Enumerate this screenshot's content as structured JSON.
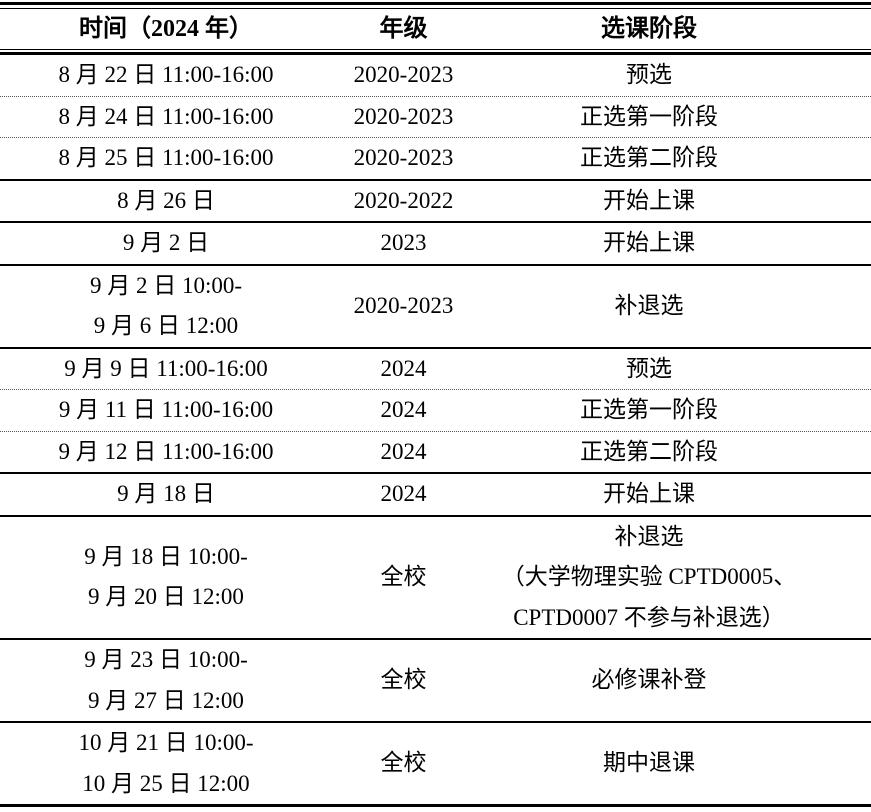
{
  "colors": {
    "text": "#000000",
    "background": "#ffffff",
    "rule": "#000000"
  },
  "table": {
    "headers": [
      "时间（2024 年）",
      "年级",
      "选课阶段"
    ],
    "rows": [
      {
        "time": [
          "8 月 22 日 11:00-16:00"
        ],
        "grade": [
          "2020-2023"
        ],
        "stage": [
          "预选"
        ],
        "divider": "dotted"
      },
      {
        "time": [
          "8 月 24 日 11:00-16:00"
        ],
        "grade": [
          "2020-2023"
        ],
        "stage": [
          "正选第一阶段"
        ],
        "divider": "dotted"
      },
      {
        "time": [
          "8 月 25 日 11:00-16:00"
        ],
        "grade": [
          "2020-2023"
        ],
        "stage": [
          "正选第二阶段"
        ],
        "divider": "solid"
      },
      {
        "time": [
          "8 月 26 日"
        ],
        "grade": [
          "2020-2022"
        ],
        "stage": [
          "开始上课"
        ],
        "divider": "solid"
      },
      {
        "time": [
          "9 月 2 日"
        ],
        "grade": [
          "2023"
        ],
        "stage": [
          "开始上课"
        ],
        "divider": "solid"
      },
      {
        "time": [
          "9 月 2 日 10:00-",
          "9 月 6 日 12:00"
        ],
        "grade": [
          "2020-2023"
        ],
        "stage": [
          "补退选"
        ],
        "divider": "solid"
      },
      {
        "time": [
          "9 月 9 日 11:00-16:00"
        ],
        "grade": [
          "2024"
        ],
        "stage": [
          "预选"
        ],
        "divider": "dotted"
      },
      {
        "time": [
          "9 月 11 日 11:00-16:00"
        ],
        "grade": [
          "2024"
        ],
        "stage": [
          "正选第一阶段"
        ],
        "divider": "dotted"
      },
      {
        "time": [
          "9 月 12 日 11:00-16:00"
        ],
        "grade": [
          "2024"
        ],
        "stage": [
          "正选第二阶段"
        ],
        "divider": "solid"
      },
      {
        "time": [
          "9 月 18 日"
        ],
        "grade": [
          "2024"
        ],
        "stage": [
          "开始上课"
        ],
        "divider": "solid"
      },
      {
        "time": [
          "9 月 18 日 10:00-",
          "9 月 20 日 12:00"
        ],
        "grade": [
          "全校"
        ],
        "stage": [
          "补退选",
          "（大学物理实验 CPTD0005、",
          "CPTD0007 不参与补退选）"
        ],
        "divider": "solid"
      },
      {
        "time": [
          "9 月 23 日 10:00-",
          "9 月 27 日 12:00"
        ],
        "grade": [
          "全校"
        ],
        "stage": [
          "必修课补登"
        ],
        "divider": "solid"
      },
      {
        "time": [
          "10 月 21 日 10:00-",
          "10 月 25 日 12:00"
        ],
        "grade": [
          "全校"
        ],
        "stage": [
          "期中退课"
        ],
        "divider": "none"
      }
    ]
  }
}
